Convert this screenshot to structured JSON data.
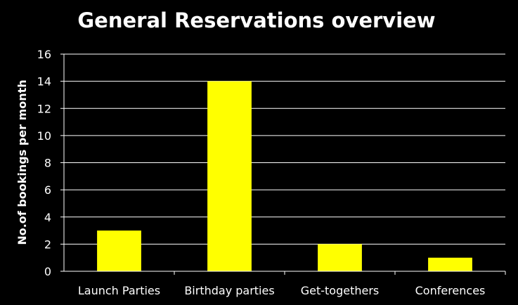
{
  "chart_data": {
    "type": "bar",
    "title": "General Reservations overview",
    "xlabel": "",
    "ylabel": "No.of bookings per month",
    "categories": [
      "Launch Parties",
      "Birthday parties",
      "Get-togethers",
      "Conferences"
    ],
    "values": [
      3,
      14,
      2,
      1
    ],
    "ylim": [
      0,
      16
    ],
    "yticks": [
      0,
      2,
      4,
      6,
      8,
      10,
      12,
      14,
      16
    ],
    "grid": true,
    "legend": "none",
    "colors": {
      "background": "#000000",
      "bar": "#ffff00",
      "grid": "#ffffff",
      "text": "#ffffff"
    }
  }
}
